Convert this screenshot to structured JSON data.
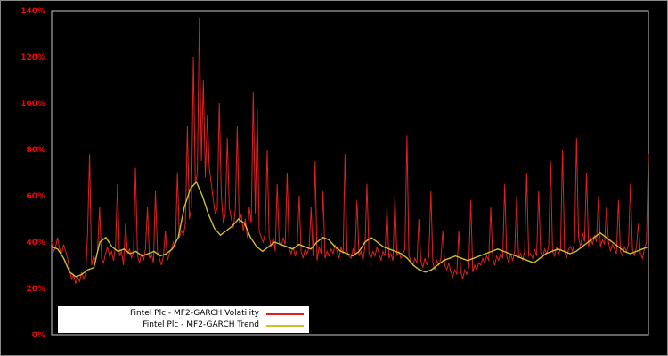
{
  "chart": {
    "background": "#000000",
    "frame_color": "#c8c8c8",
    "tick_color": "#ff0000",
    "y_ticks": [
      {
        "label": "0%",
        "value": 0
      },
      {
        "label": "20%",
        "value": 20
      },
      {
        "label": "40%",
        "value": 40
      },
      {
        "label": "60%",
        "value": 60
      },
      {
        "label": "80%",
        "value": 80
      },
      {
        "label": "100%",
        "value": 100
      },
      {
        "label": "120%",
        "value": 120
      },
      {
        "label": "140%",
        "value": 140
      }
    ]
  },
  "legend": {
    "background": "#ffffff",
    "items": [
      {
        "label": "Fintel Plc - MF2-GARCH Volatility",
        "color": "#e02020"
      },
      {
        "label": "Fintel Plc - MF2-GARCH Trend",
        "color": "#d0c030"
      }
    ]
  },
  "chart_data": {
    "type": "line",
    "title": "",
    "xlabel": "",
    "ylabel": "",
    "ylim": [
      0,
      140
    ],
    "y_tick_labels": [
      "0%",
      "20%",
      "40%",
      "60%",
      "80%",
      "100%",
      "120%",
      "140%"
    ],
    "x_tick_labels": [],
    "grid": false,
    "legend_position": "bottom-left",
    "series": [
      {
        "name": "Fintel Plc - MF2-GARCH Volatility",
        "color": "#e02020",
        "stroke_width": 1,
        "values": [
          40,
          36,
          38,
          42,
          37,
          35,
          39,
          36,
          33,
          28,
          24,
          26,
          22,
          25,
          23,
          27,
          24,
          26,
          43,
          78,
          30,
          34,
          32,
          36,
          55,
          33,
          31,
          35,
          38,
          34,
          36,
          32,
          38,
          65,
          34,
          36,
          30,
          48,
          35,
          37,
          33,
          36,
          72,
          34,
          31,
          35,
          32,
          37,
          55,
          33,
          35,
          31,
          62,
          36,
          33,
          30,
          34,
          45,
          32,
          35,
          37,
          40,
          38,
          70,
          42,
          45,
          43,
          48,
          90,
          50,
          55,
          120,
          65,
          70,
          137,
          75,
          110,
          68,
          95,
          72,
          65,
          58,
          52,
          55,
          100,
          60,
          48,
          52,
          85,
          55,
          50,
          46,
          54,
          90,
          48,
          52,
          45,
          50,
          42,
          55,
          48,
          105,
          52,
          98,
          45,
          42,
          40,
          44,
          80,
          42,
          38,
          42,
          36,
          65,
          40,
          38,
          42,
          39,
          70,
          37,
          35,
          38,
          34,
          37,
          60,
          36,
          33,
          37,
          35,
          38,
          55,
          34,
          75,
          32,
          38,
          35,
          62,
          33,
          36,
          34,
          37,
          35,
          39,
          36,
          33,
          38,
          35,
          78,
          36,
          34,
          33,
          37,
          35,
          58,
          34,
          36,
          32,
          38,
          65,
          35,
          33,
          36,
          34,
          38,
          35,
          32,
          36,
          34,
          55,
          33,
          35,
          32,
          60,
          34,
          36,
          33,
          35,
          37,
          86,
          34,
          32,
          30,
          33,
          31,
          50,
          32,
          29,
          33,
          30,
          34,
          62,
          31,
          28,
          32,
          30,
          33,
          45,
          30,
          28,
          31,
          27,
          25,
          28,
          26,
          45,
          27,
          24,
          28,
          26,
          29,
          58,
          27,
          30,
          28,
          31,
          30,
          33,
          31,
          34,
          32,
          55,
          33,
          30,
          34,
          32,
          35,
          33,
          65,
          34,
          31,
          35,
          32,
          36,
          60,
          33,
          35,
          32,
          36,
          70,
          34,
          35,
          33,
          37,
          34,
          62,
          36,
          33,
          37,
          35,
          38,
          75,
          36,
          34,
          38,
          35,
          37,
          80,
          36,
          33,
          37,
          38,
          36,
          40,
          85,
          42,
          38,
          44,
          40,
          70,
          38,
          42,
          39,
          43,
          40,
          60,
          38,
          41,
          39,
          55,
          40,
          36,
          39,
          37,
          35,
          58,
          36,
          34,
          38,
          36,
          39,
          65,
          37,
          34,
          38,
          48,
          35,
          33,
          37,
          40,
          78
        ]
      },
      {
        "name": "Fintel Plc - MF2-GARCH Trend",
        "color": "#d0c030",
        "stroke_width": 1.4,
        "values": [
          38,
          37,
          33,
          27,
          25,
          26,
          28,
          29,
          40,
          42,
          38,
          36,
          37,
          35,
          36,
          34,
          35,
          36,
          34,
          35,
          37,
          42,
          55,
          63,
          66,
          60,
          52,
          46,
          43,
          45,
          47,
          50,
          48,
          42,
          38,
          36,
          38,
          40,
          39,
          38,
          37,
          39,
          38,
          37,
          40,
          42,
          41,
          38,
          36,
          35,
          34,
          36,
          40,
          42,
          40,
          38,
          37,
          36,
          35,
          33,
          30,
          28,
          27,
          28,
          30,
          32,
          33,
          34,
          33,
          32,
          33,
          34,
          35,
          36,
          37,
          36,
          35,
          34,
          33,
          32,
          31,
          33,
          35,
          36,
          37,
          36,
          35,
          36,
          38,
          40,
          42,
          44,
          42,
          40,
          38,
          36,
          35,
          36,
          37,
          38
        ]
      }
    ]
  }
}
